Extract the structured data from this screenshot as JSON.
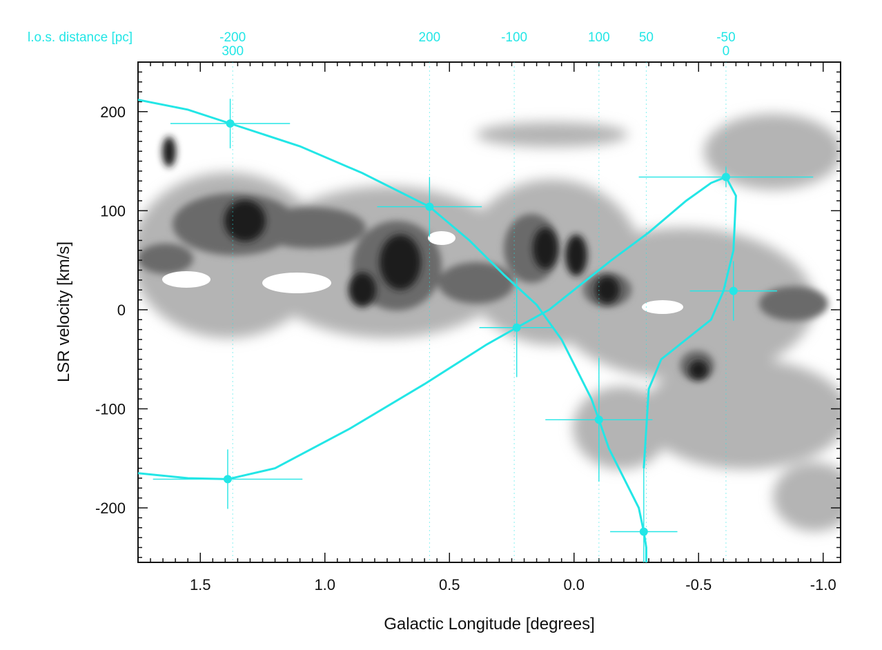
{
  "chart_data": {
    "type": "scatter",
    "title": "",
    "xlabel": "Galactic Longitude [degrees]",
    "ylabel": "LSR velocity [km/s]",
    "top_axis_label": "l.o.s. distance [pc]",
    "xlim": [
      1.75,
      -1.07
    ],
    "ylim": [
      -255,
      250
    ],
    "x_ticks": [
      1.5,
      1.0,
      0.5,
      0.0,
      -0.5,
      -1.0
    ],
    "x_tick_labels": [
      "1.5",
      "1.0",
      "0.5",
      "0.0",
      "-0.5",
      "-1.0"
    ],
    "y_ticks": [
      200,
      100,
      0,
      -100,
      -200
    ],
    "y_tick_labels": [
      "200",
      "100",
      "0",
      "-100",
      "-200"
    ],
    "top_ticks": [
      {
        "l": 1.37,
        "labels": [
          "-200",
          "300"
        ]
      },
      {
        "l": 0.58,
        "labels": [
          "200"
        ]
      },
      {
        "l": 0.24,
        "labels": [
          "-100"
        ]
      },
      {
        "l": -0.1,
        "labels": [
          "100"
        ]
      },
      {
        "l": -0.29,
        "labels": [
          "50"
        ]
      },
      {
        "l": -0.61,
        "labels": [
          "-50",
          "0"
        ]
      }
    ],
    "grid": false,
    "colors": {
      "model": "#23e6e6",
      "contour": "#1a1a1a",
      "background": "#ffffff"
    },
    "series": [
      {
        "x": [
          1.38,
          0.58,
          0.23,
          -0.1,
          -0.28,
          -0.61,
          -0.64
        ],
        "y": [
          188,
          104,
          -18,
          -111,
          -224,
          134,
          19
        ],
        "x_err": [
          0.48,
          0.42,
          0.3,
          0.43,
          0.27,
          0.7,
          0.35
        ],
        "y_err": [
          50,
          60,
          100,
          125,
          135,
          20,
          60
        ]
      },
      {
        "x": [
          1.39
        ],
        "y": [
          -171
        ],
        "x_err": [
          0.6
        ],
        "y_err": [
          60
        ]
      }
    ],
    "model_orbit": {
      "x": [
        1.75,
        1.55,
        1.38,
        1.1,
        0.85,
        0.58,
        0.42,
        0.28,
        0.15,
        0.05,
        -0.02,
        -0.07,
        -0.1,
        -0.14,
        -0.2,
        -0.26,
        -0.28,
        -0.29,
        -0.29,
        -0.27
      ],
      "y": [
        212,
        202,
        188,
        165,
        138,
        104,
        70,
        35,
        5,
        -30,
        -65,
        -90,
        -111,
        -140,
        -170,
        -200,
        -224,
        -240,
        -255,
        -260
      ]
    },
    "model_orbit_2": {
      "x": [
        1.75,
        1.55,
        1.39,
        1.2,
        0.9,
        0.6,
        0.35,
        0.23,
        0.1,
        0.0,
        -0.15,
        -0.3,
        -0.45,
        -0.55,
        -0.61,
        -0.65,
        -0.64,
        -0.6,
        -0.55,
        -0.45,
        -0.35,
        -0.3,
        -0.29,
        -0.28
      ],
      "y": [
        -165,
        -170,
        -171,
        -160,
        -120,
        -75,
        -35,
        -18,
        0,
        20,
        50,
        78,
        110,
        128,
        134,
        115,
        60,
        19,
        -10,
        -30,
        -50,
        -80,
        -120,
        -160
      ]
    }
  }
}
